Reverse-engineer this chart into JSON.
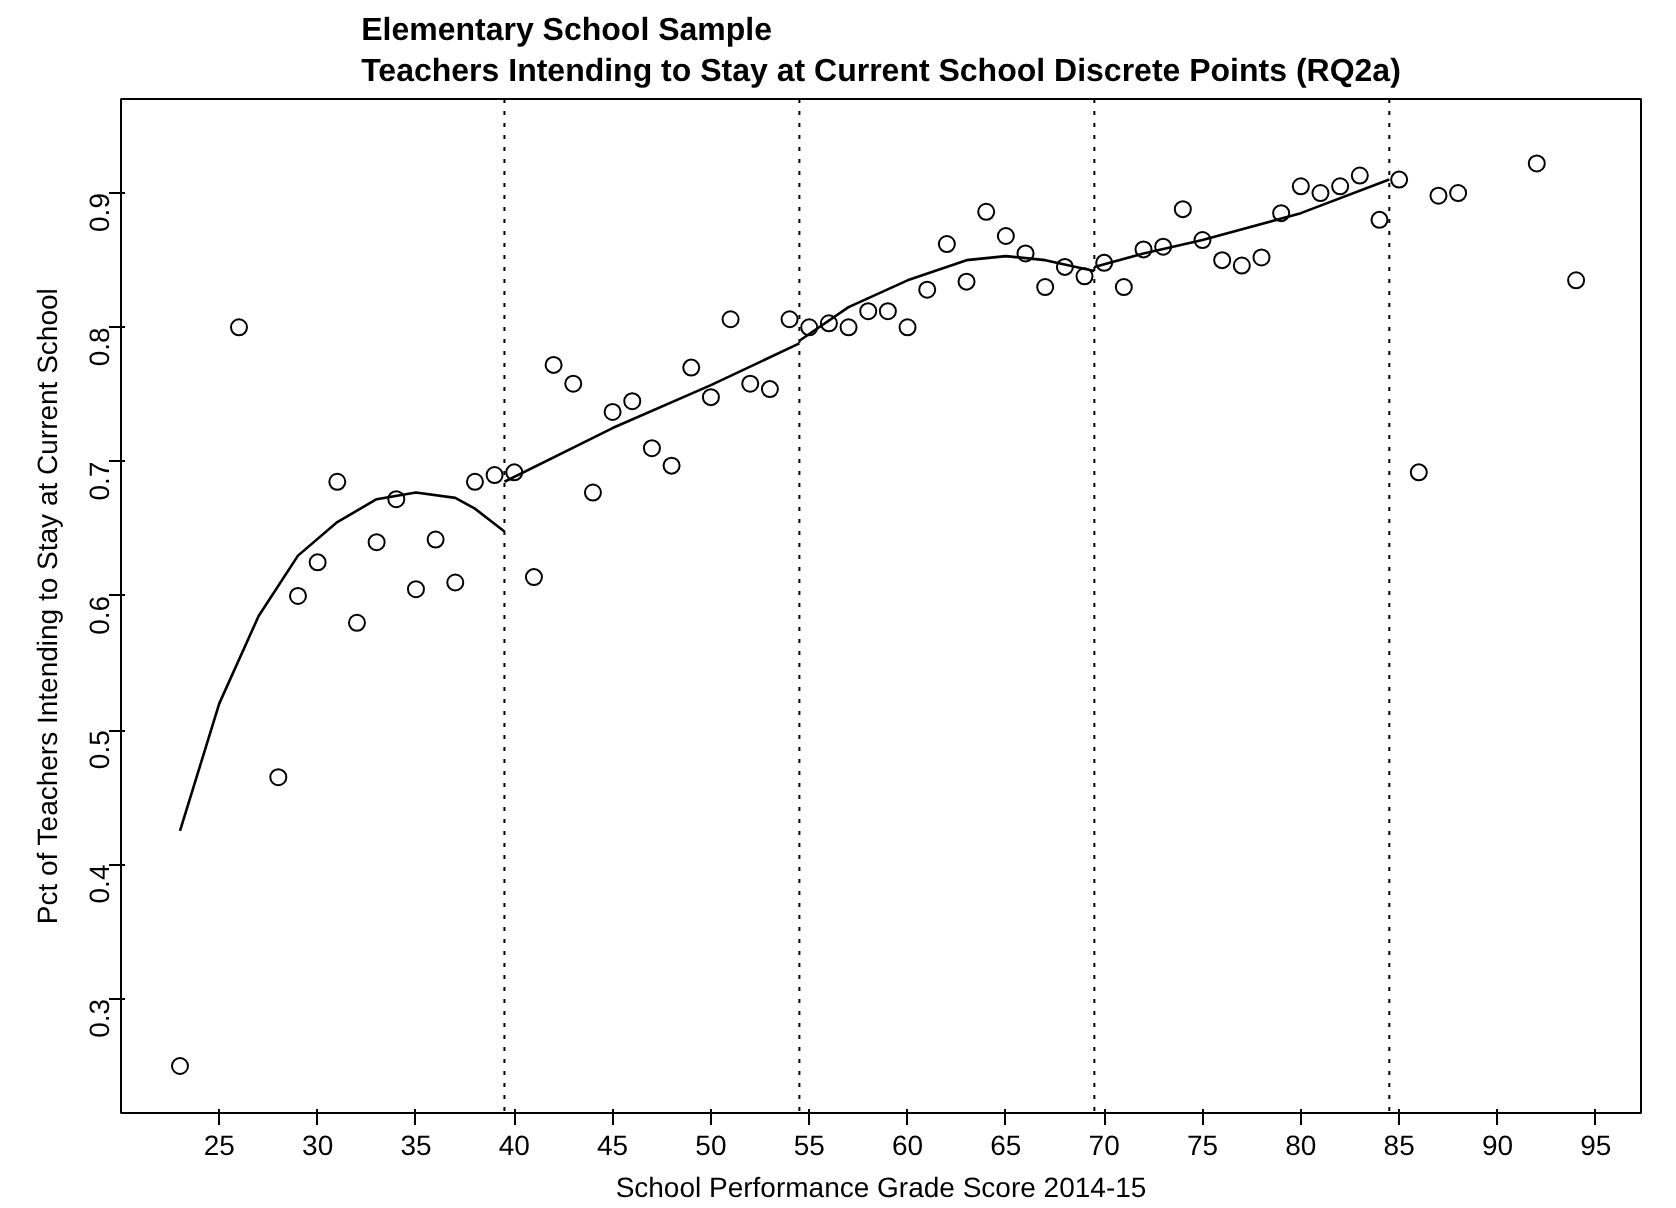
{
  "chart_data": {
    "type": "scatter",
    "title": "Elementary School Sample\nTeachers Intending to Stay at Current School Discrete Points (RQ2a)",
    "xlabel": "School Performance Grade Score 2014-15",
    "ylabel": "Pct of Teachers Intending to Stay at Current School",
    "xlim": [
      20,
      97.3
    ],
    "ylim": [
      0.215,
      0.97
    ],
    "xticks": [
      25,
      30,
      35,
      40,
      45,
      50,
      55,
      60,
      65,
      70,
      75,
      80,
      85,
      90,
      95
    ],
    "yticks": [
      0.3,
      0.4,
      0.5,
      0.6,
      0.7,
      0.8,
      0.9
    ],
    "grid": false,
    "ref_lines": [
      {
        "axis": "x",
        "value": 39.5,
        "line_style": "dotted"
      },
      {
        "axis": "x",
        "value": 54.5,
        "line_style": "dotted"
      },
      {
        "axis": "x",
        "value": 69.5,
        "line_style": "dotted"
      },
      {
        "axis": "x",
        "value": 84.5,
        "line_style": "dotted"
      }
    ],
    "series": [
      {
        "color": "#000000",
        "marker": "circle",
        "x": [
          23,
          26,
          28,
          29,
          30,
          31,
          32,
          33,
          34,
          35,
          36,
          37,
          38,
          39,
          40,
          41,
          42,
          43,
          44,
          45,
          46,
          47,
          48,
          49,
          50,
          51,
          52,
          53,
          54,
          55,
          56,
          57,
          58,
          59,
          60,
          61,
          62,
          63,
          64,
          65,
          66,
          67,
          68,
          69,
          70,
          71,
          72,
          73,
          74,
          75,
          76,
          77,
          78,
          79,
          80,
          81,
          82,
          83,
          84,
          85,
          86,
          87,
          88,
          92,
          94
        ],
        "values": [
          0.25,
          0.8,
          0.465,
          0.6,
          0.625,
          0.685,
          0.58,
          0.64,
          0.672,
          0.605,
          0.642,
          0.61,
          0.685,
          0.69,
          0.692,
          0.614,
          0.772,
          0.758,
          0.677,
          0.737,
          0.745,
          0.71,
          0.697,
          0.77,
          0.748,
          0.806,
          0.758,
          0.754,
          0.806,
          0.8,
          0.803,
          0.8,
          0.812,
          0.812,
          0.8,
          0.828,
          0.862,
          0.834,
          0.886,
          0.868,
          0.855,
          0.83,
          0.845,
          0.838,
          0.848,
          0.83,
          0.858,
          0.86,
          0.888,
          0.865,
          0.85,
          0.846,
          0.852,
          0.885,
          0.905,
          0.9,
          0.905,
          0.913,
          0.88,
          0.91,
          0.692,
          0.898,
          0.9,
          0.922,
          0.835
        ]
      },
      {
        "type": "line",
        "color": "#000000",
        "marker": "none",
        "line_style": "solid",
        "x": [
          23,
          25,
          27,
          29,
          31,
          33,
          35,
          37,
          38,
          39.5,
          null,
          39.5,
          45,
          50,
          54.5,
          null,
          54.5,
          57,
          60,
          63,
          65,
          67,
          69.5,
          null,
          69.5,
          72,
          75,
          80,
          84.5
        ],
        "values": [
          0.425,
          0.52,
          0.585,
          0.63,
          0.655,
          0.672,
          0.677,
          0.673,
          0.665,
          0.648,
          null,
          0.685,
          0.725,
          0.757,
          0.788,
          null,
          0.79,
          0.815,
          0.835,
          0.85,
          0.853,
          0.85,
          0.842,
          null,
          0.845,
          0.855,
          0.865,
          0.885,
          0.91
        ]
      }
    ]
  }
}
